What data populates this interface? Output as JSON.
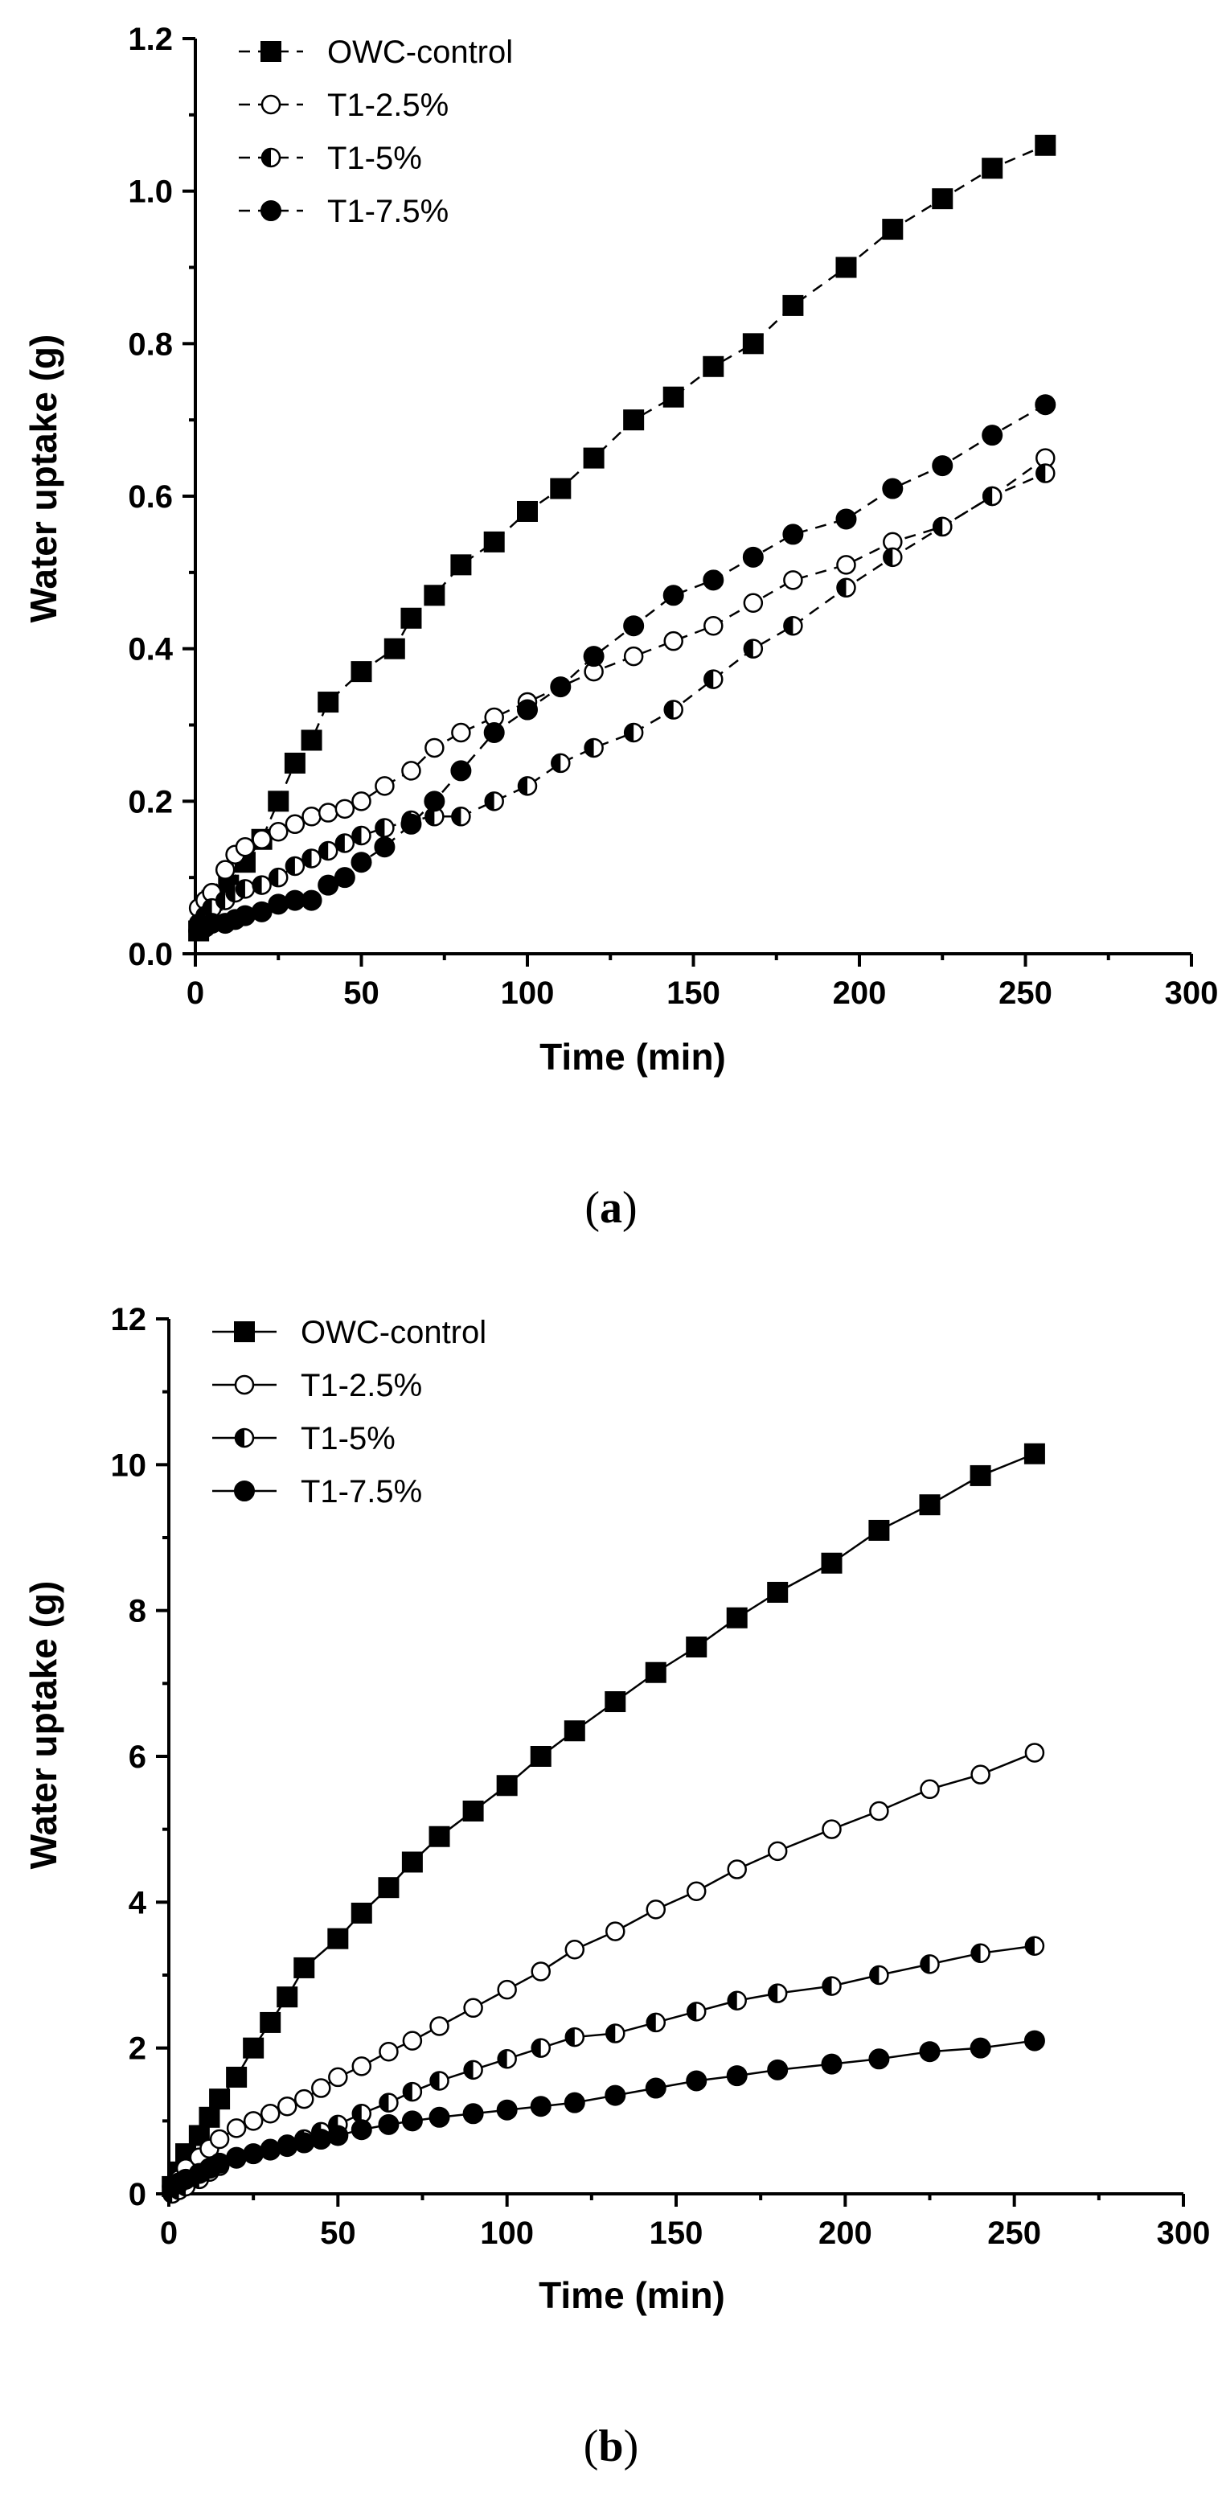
{
  "chart_data": [
    {
      "type": "scatter",
      "panel_label": "a",
      "title": "",
      "xlabel": "Time (min)",
      "ylabel": "Water uptake (g)",
      "xlim": [
        0,
        300
      ],
      "ylim": [
        0,
        1.2
      ],
      "xticks": [
        0,
        50,
        100,
        150,
        200,
        250,
        300
      ],
      "yticks": [
        0.0,
        0.2,
        0.4,
        0.6,
        0.8,
        1.0,
        1.2
      ],
      "ytick_labels": [
        "0.0",
        "0.2",
        "0.4",
        "0.6",
        "0.8",
        "1.0",
        "1.2"
      ],
      "line_style": "dashed",
      "legend_position": "top-left",
      "series": [
        {
          "name": "OWC-control",
          "marker": "square-filled",
          "x": [
            1,
            3,
            5,
            10,
            15,
            20,
            25,
            30,
            35,
            40,
            50,
            60,
            65,
            72,
            80,
            90,
            100,
            110,
            120,
            132,
            144,
            156,
            168,
            180,
            196,
            210,
            225,
            240,
            256
          ],
          "y": [
            0.03,
            0.06,
            0.07,
            0.09,
            0.12,
            0.15,
            0.2,
            0.25,
            0.28,
            0.33,
            0.37,
            0.4,
            0.44,
            0.47,
            0.51,
            0.54,
            0.58,
            0.61,
            0.65,
            0.7,
            0.73,
            0.77,
            0.8,
            0.85,
            0.9,
            0.95,
            0.99,
            1.03,
            1.06
          ]
        },
        {
          "name": "T1-2.5%",
          "marker": "circle-open",
          "x": [
            1,
            3,
            5,
            9,
            12,
            15,
            20,
            25,
            30,
            35,
            40,
            45,
            50,
            57,
            65,
            72,
            80,
            90,
            100,
            110,
            120,
            132,
            144,
            156,
            168,
            180,
            196,
            210,
            225,
            240,
            256
          ],
          "y": [
            0.06,
            0.07,
            0.08,
            0.11,
            0.13,
            0.14,
            0.15,
            0.16,
            0.17,
            0.18,
            0.185,
            0.19,
            0.2,
            0.22,
            0.24,
            0.27,
            0.29,
            0.31,
            0.33,
            0.35,
            0.37,
            0.39,
            0.41,
            0.43,
            0.46,
            0.49,
            0.51,
            0.54,
            0.56,
            0.6,
            0.65
          ]
        },
        {
          "name": "T1-5%",
          "marker": "circle-half",
          "x": [
            1,
            3,
            5,
            9,
            12,
            15,
            20,
            25,
            30,
            35,
            40,
            45,
            50,
            57,
            65,
            72,
            80,
            90,
            100,
            110,
            120,
            132,
            144,
            156,
            168,
            180,
            196,
            210,
            225,
            240,
            256
          ],
          "y": [
            0.04,
            0.05,
            0.06,
            0.07,
            0.08,
            0.085,
            0.09,
            0.1,
            0.115,
            0.125,
            0.135,
            0.145,
            0.155,
            0.165,
            0.175,
            0.18,
            0.18,
            0.2,
            0.22,
            0.25,
            0.27,
            0.29,
            0.32,
            0.36,
            0.4,
            0.43,
            0.48,
            0.52,
            0.56,
            0.6,
            0.63
          ]
        },
        {
          "name": "T1-7.5%",
          "marker": "circle-filled",
          "x": [
            1,
            3,
            5,
            9,
            12,
            15,
            20,
            25,
            30,
            35,
            40,
            45,
            50,
            57,
            65,
            72,
            80,
            90,
            100,
            110,
            120,
            132,
            144,
            156,
            168,
            180,
            196,
            210,
            225,
            240,
            256
          ],
          "y": [
            0.03,
            0.035,
            0.04,
            0.04,
            0.045,
            0.05,
            0.055,
            0.065,
            0.07,
            0.07,
            0.09,
            0.1,
            0.12,
            0.14,
            0.17,
            0.2,
            0.24,
            0.29,
            0.32,
            0.35,
            0.39,
            0.43,
            0.47,
            0.49,
            0.52,
            0.55,
            0.57,
            0.61,
            0.64,
            0.68,
            0.72
          ]
        }
      ]
    },
    {
      "type": "line",
      "panel_label": "b",
      "title": "",
      "xlabel": "Time (min)",
      "ylabel": "Water uptake (g)",
      "xlim": [
        0,
        300
      ],
      "ylim": [
        0,
        12
      ],
      "xticks": [
        0,
        50,
        100,
        150,
        200,
        250,
        300
      ],
      "yticks": [
        0,
        2,
        4,
        6,
        8,
        10,
        12
      ],
      "ytick_labels": [
        "0",
        "2",
        "4",
        "6",
        "8",
        "10",
        "12"
      ],
      "line_style": "solid",
      "legend_position": "top-left",
      "series": [
        {
          "name": "OWC-control",
          "marker": "square-filled",
          "x": [
            1,
            3,
            5,
            9,
            12,
            15,
            20,
            25,
            30,
            35,
            40,
            50,
            57,
            65,
            72,
            80,
            90,
            100,
            110,
            120,
            132,
            144,
            156,
            168,
            180,
            196,
            210,
            225,
            240,
            256
          ],
          "y": [
            0.1,
            0.3,
            0.55,
            0.8,
            1.05,
            1.3,
            1.6,
            2.0,
            2.35,
            2.7,
            3.1,
            3.5,
            3.85,
            4.2,
            4.55,
            4.9,
            5.25,
            5.6,
            6.0,
            6.35,
            6.75,
            7.15,
            7.5,
            7.9,
            8.25,
            8.65,
            9.1,
            9.45,
            9.85,
            10.15
          ]
        },
        {
          "name": "T1-2.5%",
          "marker": "circle-open",
          "x": [
            1,
            3,
            5,
            9,
            12,
            15,
            20,
            25,
            30,
            35,
            40,
            45,
            50,
            57,
            65,
            72,
            80,
            90,
            100,
            110,
            120,
            132,
            144,
            156,
            168,
            180,
            196,
            210,
            225,
            240,
            256
          ],
          "y": [
            0.05,
            0.2,
            0.35,
            0.5,
            0.62,
            0.75,
            0.9,
            1.0,
            1.1,
            1.2,
            1.3,
            1.45,
            1.6,
            1.75,
            1.95,
            2.1,
            2.3,
            2.55,
            2.8,
            3.05,
            3.35,
            3.6,
            3.9,
            4.15,
            4.45,
            4.7,
            5.0,
            5.25,
            5.55,
            5.75,
            6.05
          ]
        },
        {
          "name": "T1-5%",
          "marker": "circle-half",
          "x": [
            1,
            3,
            5,
            9,
            12,
            15,
            20,
            25,
            30,
            35,
            40,
            45,
            50,
            57,
            65,
            72,
            80,
            90,
            100,
            110,
            120,
            132,
            144,
            156,
            168,
            180,
            196,
            210,
            225,
            240,
            256
          ],
          "y": [
            0.0,
            0.05,
            0.1,
            0.2,
            0.3,
            0.38,
            0.48,
            0.55,
            0.62,
            0.68,
            0.75,
            0.85,
            0.95,
            1.1,
            1.25,
            1.4,
            1.55,
            1.7,
            1.85,
            2.0,
            2.15,
            2.2,
            2.35,
            2.5,
            2.65,
            2.75,
            2.85,
            3.0,
            3.15,
            3.3,
            3.4
          ]
        },
        {
          "name": "T1-7.5%",
          "marker": "circle-filled",
          "x": [
            1,
            3,
            5,
            9,
            12,
            15,
            20,
            25,
            30,
            35,
            40,
            45,
            50,
            57,
            65,
            72,
            80,
            90,
            100,
            110,
            120,
            132,
            144,
            156,
            168,
            180,
            196,
            210,
            225,
            240,
            256
          ],
          "y": [
            0.1,
            0.15,
            0.2,
            0.28,
            0.35,
            0.42,
            0.5,
            0.55,
            0.6,
            0.65,
            0.7,
            0.75,
            0.8,
            0.88,
            0.95,
            1.0,
            1.05,
            1.1,
            1.15,
            1.2,
            1.25,
            1.35,
            1.45,
            1.55,
            1.62,
            1.7,
            1.78,
            1.85,
            1.95,
            2.0,
            2.1
          ]
        }
      ]
    }
  ]
}
